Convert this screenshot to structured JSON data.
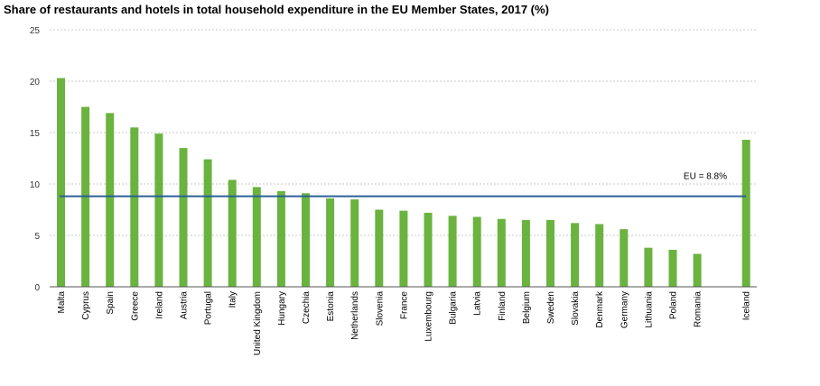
{
  "chart_data": {
    "type": "bar",
    "title": "Share of restaurants and hotels in total household expenditure in the EU Member States, 2017 (%)",
    "xlabel": "",
    "ylabel": "",
    "ylim": [
      0,
      25
    ],
    "yticks": [
      0,
      5,
      10,
      15,
      20,
      25
    ],
    "grid": true,
    "categories": [
      "Malta",
      "Cyprus",
      "Spain",
      "Greece",
      "Ireland",
      "Austria",
      "Portugal",
      "Italy",
      "United Kingdom",
      "Hungary",
      "Czechia",
      "Estonia",
      "Netherlands",
      "Slovenia",
      "France",
      "Luxembourg",
      "Bulgaria",
      "Latvia",
      "Finland",
      "Belgium",
      "Sweden",
      "Slovakia",
      "Denmark",
      "Germany",
      "Lithuania",
      "Poland",
      "Romania",
      "Iceland"
    ],
    "values": [
      20.3,
      17.5,
      16.9,
      15.5,
      14.9,
      13.5,
      12.4,
      10.4,
      9.7,
      9.3,
      9.1,
      8.6,
      8.5,
      7.5,
      7.4,
      7.2,
      6.9,
      6.8,
      6.6,
      6.5,
      6.5,
      6.2,
      6.1,
      5.6,
      3.8,
      3.6,
      3.2,
      14.3
    ],
    "reference_line": {
      "label": "EU = 8.8%",
      "value": 8.8
    },
    "colors": {
      "bar": "#6ab33e",
      "reference_line": "#2a6099",
      "grid": "#c8c8c8",
      "axis": "#555555"
    }
  }
}
